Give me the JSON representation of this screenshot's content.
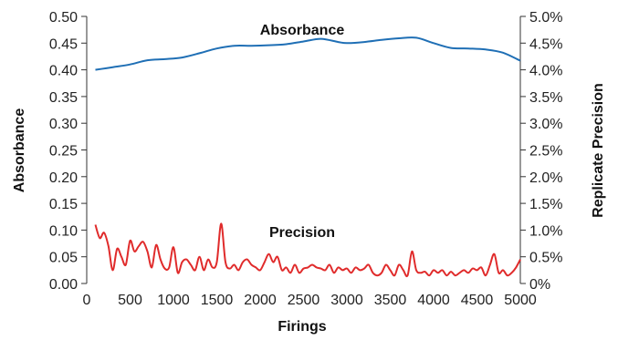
{
  "chart_data": {
    "type": "line",
    "xlabel": "Firings",
    "ylabel": "Absorbance",
    "y2label": "Replicate Precision",
    "xlim": [
      0,
      5000
    ],
    "ylim": [
      0,
      0.5
    ],
    "y2lim": [
      0,
      5.0
    ],
    "x_ticks": [
      "0",
      "500",
      "1000",
      "1500",
      "2000",
      "2500",
      "3000",
      "3500",
      "4000",
      "4500",
      "5000"
    ],
    "y_ticks": [
      "0.00",
      "0.05",
      "0.10",
      "0.15",
      "0.20",
      "0.25",
      "0.30",
      "0.35",
      "0.40",
      "0.45",
      "0.50"
    ],
    "y2_ticks": [
      "0%",
      "0.5%",
      "1.0%",
      "1.5%",
      "2.0%",
      "2.5%",
      "3.0%",
      "3.5%",
      "4.0%",
      "4.5%",
      "5.0%"
    ],
    "grid": false,
    "series": [
      {
        "name": "Absorbance",
        "axis": "left",
        "color": "#1f6fb5",
        "x": [
          100,
          300,
          500,
          700,
          900,
          1100,
          1300,
          1500,
          1700,
          1900,
          2100,
          2300,
          2500,
          2700,
          2900,
          3000,
          3200,
          3400,
          3600,
          3800,
          4000,
          4200,
          4400,
          4600,
          4800,
          5000
        ],
        "y": [
          0.4,
          0.405,
          0.41,
          0.418,
          0.42,
          0.423,
          0.431,
          0.44,
          0.445,
          0.445,
          0.446,
          0.448,
          0.453,
          0.458,
          0.452,
          0.45,
          0.452,
          0.456,
          0.459,
          0.46,
          0.45,
          0.441,
          0.44,
          0.438,
          0.432,
          0.417
        ]
      },
      {
        "name": "Precision",
        "axis": "right",
        "color": "#e02b2b",
        "x": [
          100,
          150,
          200,
          250,
          300,
          350,
          400,
          450,
          500,
          550,
          600,
          650,
          700,
          750,
          800,
          850,
          900,
          950,
          1000,
          1050,
          1100,
          1150,
          1200,
          1250,
          1300,
          1350,
          1400,
          1450,
          1500,
          1550,
          1600,
          1650,
          1700,
          1750,
          1800,
          1850,
          1900,
          1950,
          2000,
          2050,
          2100,
          2150,
          2200,
          2250,
          2300,
          2350,
          2400,
          2450,
          2500,
          2550,
          2600,
          2650,
          2700,
          2750,
          2800,
          2850,
          2900,
          2950,
          3000,
          3050,
          3100,
          3150,
          3200,
          3250,
          3300,
          3350,
          3400,
          3450,
          3500,
          3550,
          3600,
          3650,
          3700,
          3750,
          3800,
          3850,
          3900,
          3950,
          4000,
          4050,
          4100,
          4150,
          4200,
          4250,
          4300,
          4350,
          4400,
          4450,
          4500,
          4550,
          4600,
          4650,
          4700,
          4750,
          4800,
          4850,
          4900,
          4950,
          5000
        ],
        "y": [
          1.1,
          0.85,
          0.95,
          0.7,
          0.25,
          0.65,
          0.5,
          0.35,
          0.8,
          0.6,
          0.7,
          0.78,
          0.6,
          0.3,
          0.72,
          0.45,
          0.28,
          0.3,
          0.68,
          0.2,
          0.4,
          0.45,
          0.35,
          0.25,
          0.5,
          0.25,
          0.45,
          0.3,
          0.4,
          1.12,
          0.4,
          0.28,
          0.35,
          0.25,
          0.4,
          0.45,
          0.35,
          0.3,
          0.25,
          0.4,
          0.55,
          0.4,
          0.5,
          0.25,
          0.3,
          0.2,
          0.35,
          0.2,
          0.28,
          0.3,
          0.35,
          0.3,
          0.28,
          0.25,
          0.35,
          0.2,
          0.3,
          0.25,
          0.28,
          0.2,
          0.3,
          0.25,
          0.28,
          0.35,
          0.2,
          0.15,
          0.2,
          0.35,
          0.25,
          0.15,
          0.35,
          0.25,
          0.15,
          0.6,
          0.25,
          0.2,
          0.22,
          0.15,
          0.25,
          0.2,
          0.25,
          0.15,
          0.22,
          0.15,
          0.2,
          0.25,
          0.2,
          0.28,
          0.25,
          0.3,
          0.15,
          0.35,
          0.55,
          0.2,
          0.25,
          0.15,
          0.2,
          0.3,
          0.45
        ]
      }
    ]
  }
}
